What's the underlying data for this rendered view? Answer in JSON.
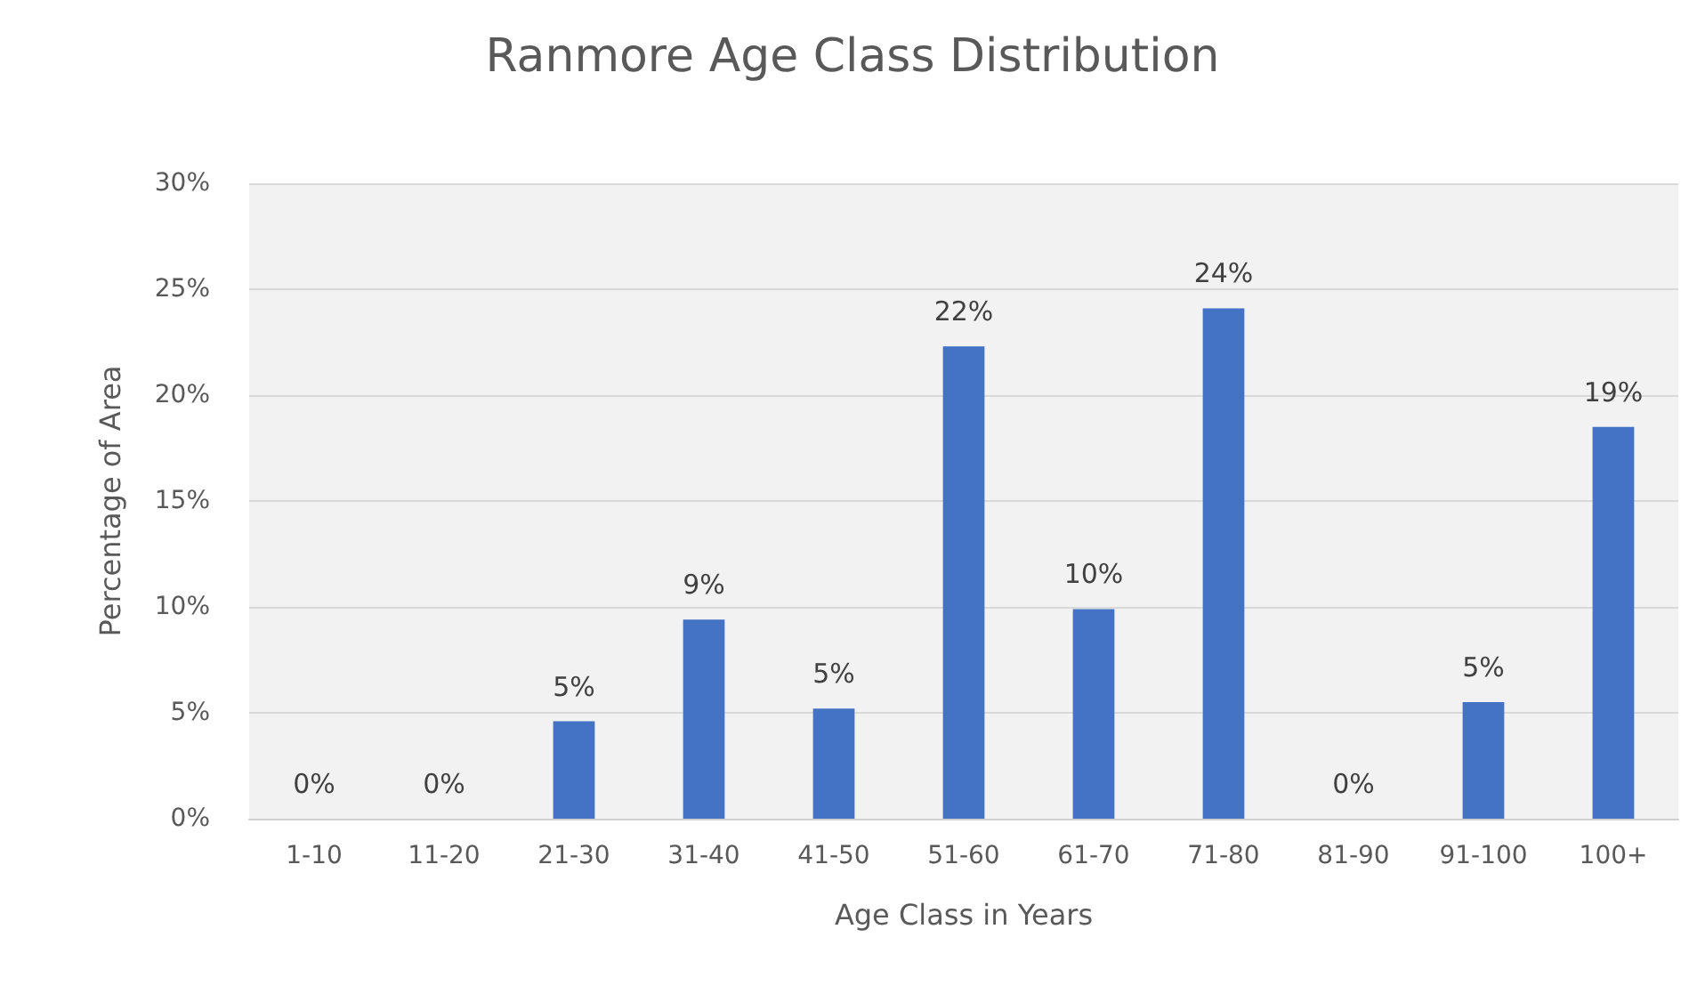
{
  "chart_data": {
    "type": "bar",
    "title": "Ranmore Age Class Distribution",
    "xlabel": "Age Class in Years",
    "ylabel": "Percentage of Area",
    "categories": [
      "1-10",
      "11-20",
      "21-30",
      "31-40",
      "41-50",
      "51-60",
      "61-70",
      "71-80",
      "81-90",
      "91-100",
      "100+"
    ],
    "values": [
      0,
      0,
      4.6,
      9.4,
      5.2,
      22.3,
      9.9,
      24.1,
      0,
      5.5,
      18.5
    ],
    "value_labels": [
      "0%",
      "0%",
      "5%",
      "9%",
      "5%",
      "22%",
      "10%",
      "24%",
      "0%",
      "5%",
      "19%"
    ],
    "color": "#4472c4",
    "ylim": [
      0,
      30
    ],
    "yticks": [
      {
        "value": 0,
        "label": "0%"
      },
      {
        "value": 5,
        "label": "5%"
      },
      {
        "value": 10,
        "label": "10%"
      },
      {
        "value": 15,
        "label": "15%"
      },
      {
        "value": 20,
        "label": "20%"
      },
      {
        "value": 25,
        "label": "25%"
      },
      {
        "value": 30,
        "label": "30%"
      }
    ],
    "grid": "y"
  }
}
